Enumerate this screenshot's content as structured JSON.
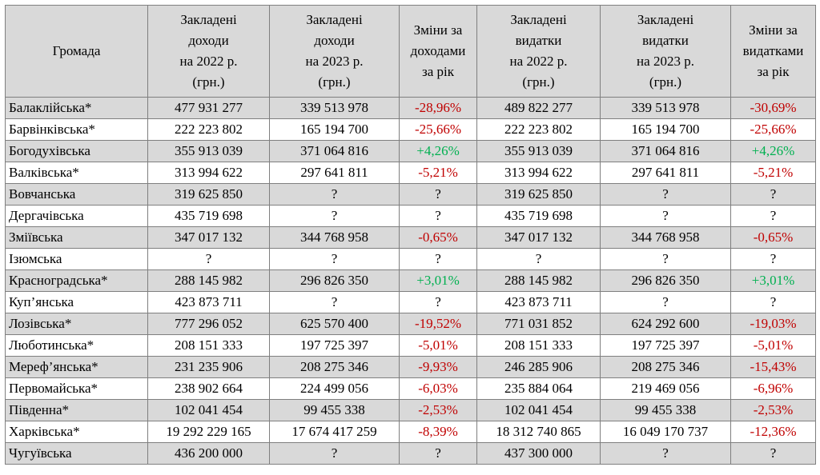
{
  "table": {
    "headers": [
      "Громада",
      "Закладені доходи на 2022 р. (грн.)",
      "Закладені доходи на 2023 р. (грн.)",
      "Зміни за доходами за рік",
      "Закладені видатки на 2022 р. (грн.)",
      "Закладені видатки на 2023 р. (грн.)",
      "Зміни за видатками за рік"
    ],
    "header_lines": [
      [
        "Громада"
      ],
      [
        "Закладені",
        "доходи",
        "на 2022 р.",
        "(грн.)"
      ],
      [
        "Закладені",
        "доходи",
        "на 2023 р.",
        "(грн.)"
      ],
      [
        "Зміни за",
        "доходами",
        "за рік"
      ],
      [
        "Закладені",
        "видатки",
        "на 2022 р.",
        "(грн.)"
      ],
      [
        "Закладені",
        "видатки",
        "на 2023 р.",
        "(грн.)"
      ],
      [
        "Зміни за",
        "видатками",
        "за рік"
      ]
    ],
    "rows": [
      [
        "Балаклійська*",
        "477 931 277",
        "339 513 978",
        "-28,96%",
        "489 822 277",
        "339 513 978",
        "-30,69%"
      ],
      [
        "Барвінківська*",
        "222 223 802",
        "165 194 700",
        "-25,66%",
        "222 223 802",
        "165 194 700",
        "-25,66%"
      ],
      [
        "Богодухівська",
        "355 913 039",
        "371 064 816",
        "+4,26%",
        "355 913 039",
        "371 064 816",
        "+4,26%"
      ],
      [
        "Валківська*",
        "313 994 622",
        "297 641 811",
        "-5,21%",
        "313 994 622",
        "297 641 811",
        "-5,21%"
      ],
      [
        "Вовчанська",
        "319 625 850",
        "?",
        "?",
        "319 625 850",
        "?",
        "?"
      ],
      [
        "Дергачівська",
        "435 719 698",
        "?",
        "?",
        "435 719 698",
        "?",
        "?"
      ],
      [
        "Зміївська",
        "347 017 132",
        "344 768 958",
        "-0,65%",
        "347 017 132",
        "344 768 958",
        "-0,65%"
      ],
      [
        "Ізюмська",
        "?",
        "?",
        "?",
        "?",
        "?",
        "?"
      ],
      [
        "Красноградська*",
        "288 145 982",
        "296 826 350",
        "+3,01%",
        "288 145 982",
        "296 826 350",
        "+3,01%"
      ],
      [
        "Куп’янська",
        "423 873 711",
        "?",
        "?",
        "423 873 711",
        "?",
        "?"
      ],
      [
        "Лозівська*",
        "777 296 052",
        "625 570 400",
        "-19,52%",
        "771 031 852",
        "624 292 600",
        "-19,03%"
      ],
      [
        "Люботинська*",
        "208 151 333",
        "197 725 397",
        "-5,01%",
        "208 151 333",
        "197 725 397",
        "-5,01%"
      ],
      [
        "Мереф’янська*",
        "231 235 906",
        "208 275 346",
        "-9,93%",
        "246 285 906",
        "208 275 346",
        "-15,43%"
      ],
      [
        "Первомайська*",
        "238 902 664",
        "224 499 056",
        "-6,03%",
        "235 884 064",
        "219 469 056",
        "-6,96%"
      ],
      [
        "Південна*",
        "102 041 454",
        "99 455 338",
        "-2,53%",
        "102 041 454",
        "99 455 338",
        "-2,53%"
      ],
      [
        "Харківська*",
        "19 292 229 165",
        "17 674 417 259",
        "-8,39%",
        "18 312 740 865",
        "16 049 170 737",
        "-12,36%"
      ],
      [
        "Чугуївська",
        "436 200 000",
        "?",
        "?",
        "437 300 000",
        "?",
        "?"
      ]
    ]
  },
  "colors": {
    "shade": "#d9d9d9",
    "border": "#7f7f7f",
    "negative": "#c00000",
    "positive": "#00b050"
  }
}
